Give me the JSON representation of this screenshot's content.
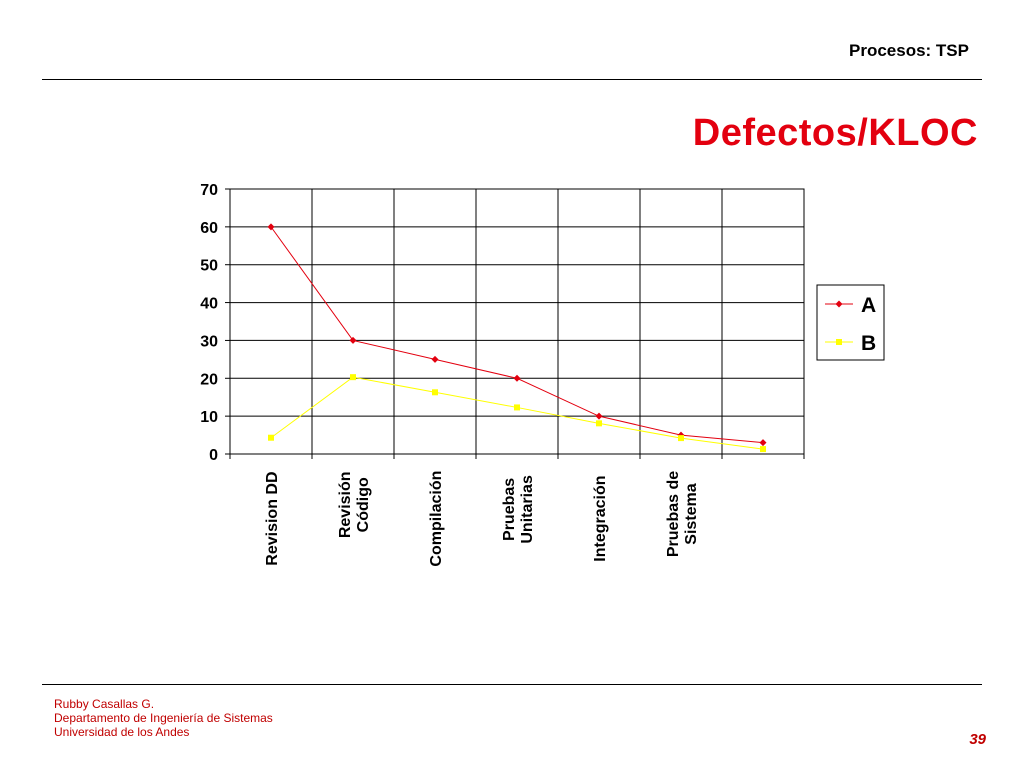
{
  "header": {
    "title": "Procesos: TSP"
  },
  "slide": {
    "title": "Defectos/KLOC"
  },
  "footer": {
    "line1": "Rubby Casallas G.",
    "line2": "Departamento de Ingeniería de Sistemas",
    "line3": "Universidad de los Andes",
    "page_number": "39"
  },
  "chart_data": {
    "type": "line",
    "title": "",
    "xlabel": "",
    "ylabel": "",
    "ylim": [
      0,
      70
    ],
    "yticks": [
      0,
      10,
      20,
      30,
      40,
      50,
      60,
      70
    ],
    "grid": true,
    "legend_position": "right",
    "categories": [
      [
        "Revision DD"
      ],
      [
        "Revisión",
        "Código"
      ],
      [
        "Compilación"
      ],
      [
        "Pruebas",
        "Unitarias"
      ],
      [
        "Integración"
      ],
      [
        "Pruebas de",
        "Sistema"
      ],
      []
    ],
    "series": [
      {
        "name": "A",
        "color": "#e3000f",
        "marker": "diamond",
        "values": [
          60,
          30,
          25,
          20,
          10,
          5,
          3
        ]
      },
      {
        "name": "B",
        "color": "#ffff00",
        "marker": "square",
        "values": [
          4.3,
          20.3,
          16.3,
          12.3,
          8.1,
          4.2,
          1.3
        ]
      }
    ]
  }
}
